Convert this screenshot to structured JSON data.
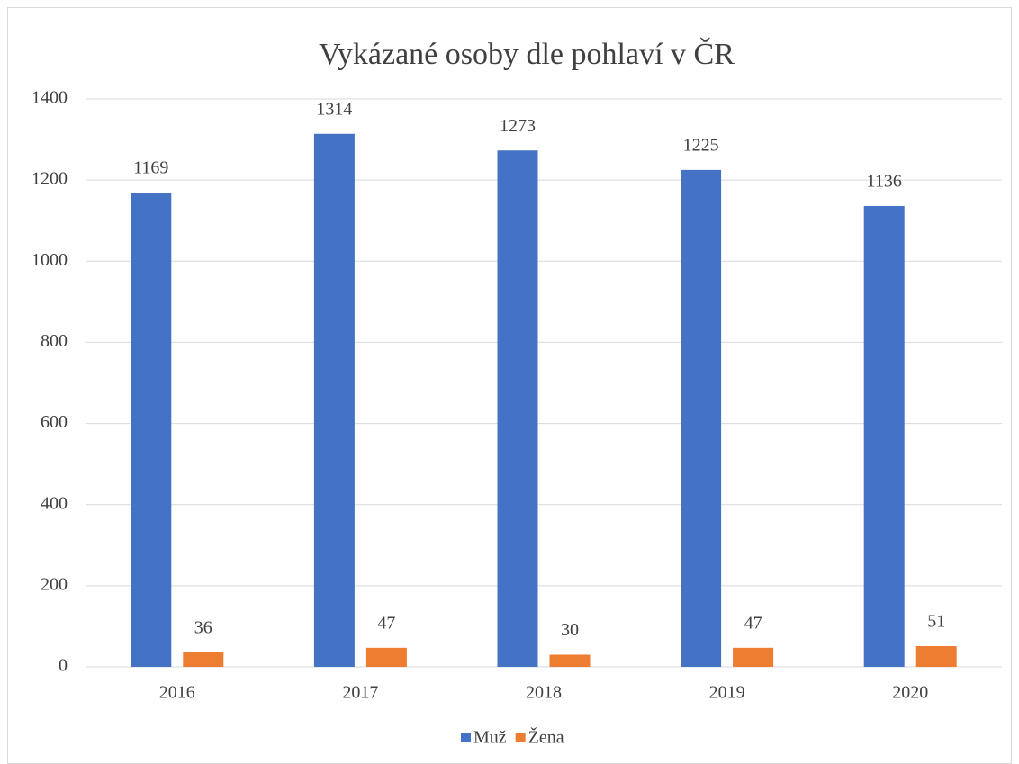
{
  "chart_data": {
    "type": "bar",
    "title": "Vykázané osoby dle pohlaví v ČR",
    "categories": [
      "2016",
      "2017",
      "2018",
      "2019",
      "2020"
    ],
    "series": [
      {
        "name": "Muž",
        "color": "#4472c4",
        "values": [
          1169,
          1314,
          1273,
          1225,
          1136
        ]
      },
      {
        "name": "Žena",
        "color": "#ed7d31",
        "values": [
          36,
          47,
          30,
          47,
          51
        ]
      }
    ],
    "ylim": [
      0,
      1400
    ],
    "yticks": [
      0,
      200,
      400,
      600,
      800,
      1000,
      1200,
      1400
    ],
    "grid": true,
    "legend": "bottom"
  }
}
